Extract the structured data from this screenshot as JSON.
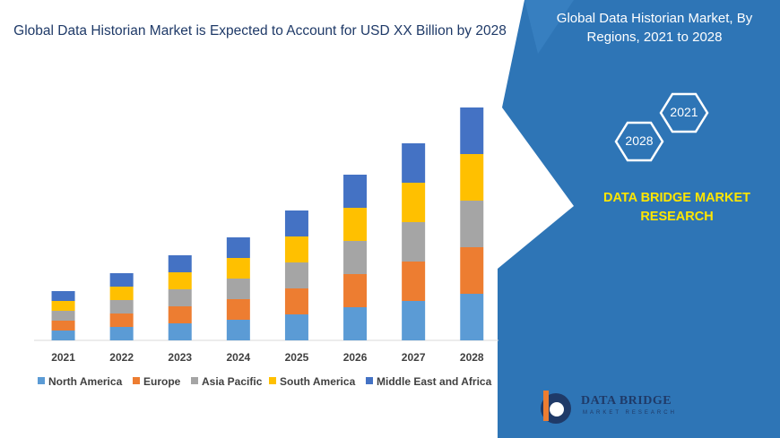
{
  "chart_data": {
    "type": "bar",
    "stacked": true,
    "title": "Global Data Historian Market is Expected to Account for USD XX Billion by 2028",
    "categories": [
      "2021",
      "2022",
      "2023",
      "2024",
      "2025",
      "2026",
      "2027",
      "2028"
    ],
    "series": [
      {
        "name": "North America",
        "color": "#5b9bd5",
        "values": [
          11,
          15,
          19,
          23,
          29,
          37,
          44,
          52
        ]
      },
      {
        "name": "Europe",
        "color": "#ed7d31",
        "values": [
          11,
          15,
          19,
          23,
          29,
          37,
          44,
          52
        ]
      },
      {
        "name": "Asia Pacific",
        "color": "#a5a5a5",
        "values": [
          11,
          15,
          19,
          23,
          29,
          37,
          44,
          52
        ]
      },
      {
        "name": "South America",
        "color": "#ffc000",
        "values": [
          11,
          15,
          19,
          23,
          29,
          37,
          44,
          52
        ]
      },
      {
        "name": "Middle East and Africa",
        "color": "#4472c4",
        "values": [
          11,
          15,
          19,
          23,
          29,
          37,
          44,
          52
        ]
      }
    ],
    "ylim": [
      0,
      270
    ],
    "legend_position": "bottom",
    "grid": false
  },
  "side_panel": {
    "title": "Global Data Historian Market, By Regions,  2021 to 2028",
    "hex_left": "2028",
    "hex_right": "2021",
    "brand": "DATA BRIDGE MARKET RESEARCH",
    "bg_color": "#2e75b6",
    "accent_color": "#ffe600"
  },
  "logo": {
    "main": "DATA BRIDGE",
    "sub": "MARKET RESEARCH",
    "icon": "data-bridge-logo-icon"
  }
}
